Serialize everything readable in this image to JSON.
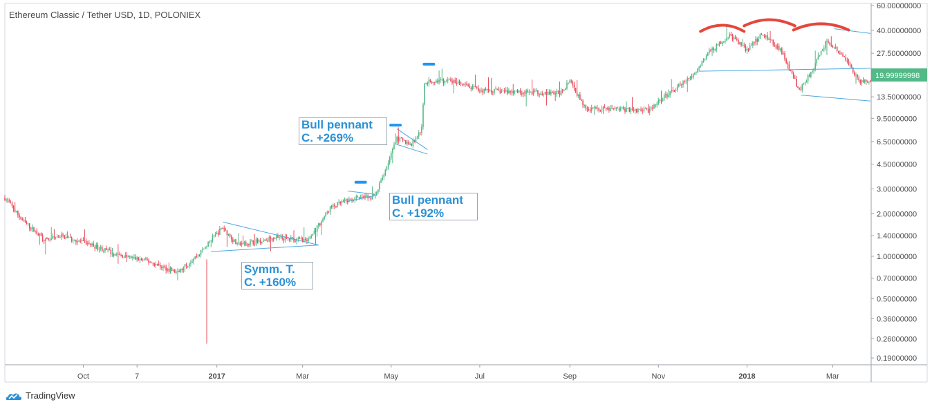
{
  "chart_data": {
    "type": "candlestick",
    "title": "Ethereum Classic / Tether USD, 1D, POLONIEX",
    "y_scale": "log",
    "ylim": [
      0.17,
      62
    ],
    "y_ticks": [
      "60.00000000",
      "40.00000000",
      "27.50000000",
      "19.99999998",
      "13.50000000",
      "9.50000000",
      "6.50000000",
      "4.50000000",
      "3.00000000",
      "2.00000000",
      "1.40000000",
      "1.00000000",
      "0.70000000",
      "0.50000000",
      "0.36000000",
      "0.26000000",
      "0.19000000"
    ],
    "y_tick_values": [
      60,
      40,
      27.5,
      20,
      13.5,
      9.5,
      6.5,
      4.5,
      3,
      2,
      1.4,
      1,
      0.7,
      0.5,
      0.36,
      0.26,
      0.19
    ],
    "last_price": "19.99999998",
    "x_ticks": [
      {
        "label": "Oct",
        "date": "2016-10-01",
        "bold": false
      },
      {
        "label": "7",
        "date": "2016-11-07",
        "bold": false
      },
      {
        "label": "2017",
        "date": "2017-01-01",
        "bold": true
      },
      {
        "label": "Mar",
        "date": "2017-03-01",
        "bold": false
      },
      {
        "label": "May",
        "date": "2017-05-01",
        "bold": false
      },
      {
        "label": "Jul",
        "date": "2017-07-01",
        "bold": false
      },
      {
        "label": "Sep",
        "date": "2017-09-01",
        "bold": false
      },
      {
        "label": "Nov",
        "date": "2017-11-01",
        "bold": false
      },
      {
        "label": "2018",
        "date": "2018-01-01",
        "bold": true
      },
      {
        "label": "Mar",
        "date": "2018-03-01",
        "bold": false
      }
    ],
    "x_range": [
      "2016-08-08",
      "2018-03-27"
    ],
    "price_path": [
      [
        "2016-08-08",
        2.6
      ],
      [
        "2016-08-20",
        1.8
      ],
      [
        "2016-09-05",
        1.3
      ],
      [
        "2016-09-15",
        1.4
      ],
      [
        "2016-10-05",
        1.22
      ],
      [
        "2016-10-25",
        1.02
      ],
      [
        "2016-11-15",
        0.92
      ],
      [
        "2016-12-05",
        0.76
      ],
      [
        "2016-12-20",
        1.05
      ],
      [
        "2017-01-05",
        1.6
      ],
      [
        "2017-01-15",
        1.2
      ],
      [
        "2017-02-10",
        1.35
      ],
      [
        "2017-03-05",
        1.3
      ],
      [
        "2017-03-20",
        2.2
      ],
      [
        "2017-03-28",
        2.4
      ],
      [
        "2017-04-05",
        2.55
      ],
      [
        "2017-04-20",
        2.65
      ],
      [
        "2017-05-05",
        6.8
      ],
      [
        "2017-05-15",
        6.2
      ],
      [
        "2017-05-22",
        8.0
      ],
      [
        "2017-05-24",
        17.2
      ],
      [
        "2017-06-10",
        17.5
      ],
      [
        "2017-07-01",
        15.0
      ],
      [
        "2017-07-30",
        14.6
      ],
      [
        "2017-08-25",
        14.3
      ],
      [
        "2017-09-01",
        17.5
      ],
      [
        "2017-09-12",
        11.0
      ],
      [
        "2017-10-10",
        11.0
      ],
      [
        "2017-10-25",
        10.8
      ],
      [
        "2017-11-10",
        14.8
      ],
      [
        "2017-11-25",
        19.0
      ],
      [
        "2017-12-05",
        27.5
      ],
      [
        "2017-12-20",
        37.0
      ],
      [
        "2018-01-01",
        29.0
      ],
      [
        "2018-01-12",
        38.0
      ],
      [
        "2018-01-25",
        28.0
      ],
      [
        "2018-02-06",
        15.0
      ],
      [
        "2018-02-15",
        21.0
      ],
      [
        "2018-02-25",
        34.0
      ],
      [
        "2018-03-10",
        25.0
      ],
      [
        "2018-03-20",
        17.0
      ],
      [
        "2018-03-27",
        17.8
      ]
    ],
    "trend_lines": [
      {
        "color": "#4aa8e0",
        "points": [
          [
            "2016-12-28",
            1.08
          ],
          [
            "2017-03-12",
            1.2
          ]
        ]
      },
      {
        "color": "#4aa8e0",
        "points": [
          [
            "2017-01-05",
            1.75
          ],
          [
            "2017-03-12",
            1.2
          ]
        ]
      },
      {
        "color": "#4aa8e0",
        "points": [
          [
            "2017-04-01",
            2.9
          ],
          [
            "2017-04-20",
            2.75
          ]
        ]
      },
      {
        "color": "#4aa8e0",
        "points": [
          [
            "2017-04-01",
            2.45
          ],
          [
            "2017-04-20",
            2.7
          ]
        ]
      },
      {
        "color": "#4aa8e0",
        "points": [
          [
            "2017-05-05",
            8.0
          ],
          [
            "2017-05-26",
            5.7
          ]
        ]
      },
      {
        "color": "#4aa8e0",
        "points": [
          [
            "2017-05-05",
            6.2
          ],
          [
            "2017-05-26",
            5.3
          ]
        ]
      },
      {
        "color": "#4aa8e0",
        "points": [
          [
            "2017-11-29",
            20.5
          ],
          [
            "2018-03-27",
            21.5
          ]
        ]
      },
      {
        "color": "#4aa8e0",
        "points": [
          [
            "2018-02-07",
            13.9
          ],
          [
            "2018-03-27",
            12.6
          ]
        ]
      },
      {
        "color": "#4aa8e0",
        "points": [
          [
            "2018-03-02",
            41.0
          ],
          [
            "2018-03-27",
            38.0
          ]
        ]
      }
    ],
    "target_markers": [
      {
        "date": "2017-04-10",
        "value": 3.35
      },
      {
        "date": "2017-05-04",
        "value": 8.5
      },
      {
        "date": "2017-05-27",
        "value": 23.0
      }
    ],
    "shoulder_arcs": [
      {
        "from": "2017-11-30",
        "to": "2017-12-30",
        "value": 42
      },
      {
        "from": "2017-12-30",
        "to": "2018-02-03",
        "value": 46
      },
      {
        "from": "2018-02-02",
        "to": "2018-03-12",
        "value": 43
      }
    ],
    "annotations": [
      {
        "line1": "Bull pennant",
        "line2": "C. +269%"
      },
      {
        "line1": "Bull pennant",
        "line2": "C. +192%"
      },
      {
        "line1": "Symm. T.",
        "line2": "C. +160%"
      }
    ],
    "colors": {
      "up": "#53b987",
      "down": "#eb4d5c",
      "line": "#4aa8e0",
      "marker": "#2196f3",
      "arc": "#e5473b",
      "price_label": "#53b987"
    }
  },
  "branding": {
    "name": "TradingView"
  }
}
